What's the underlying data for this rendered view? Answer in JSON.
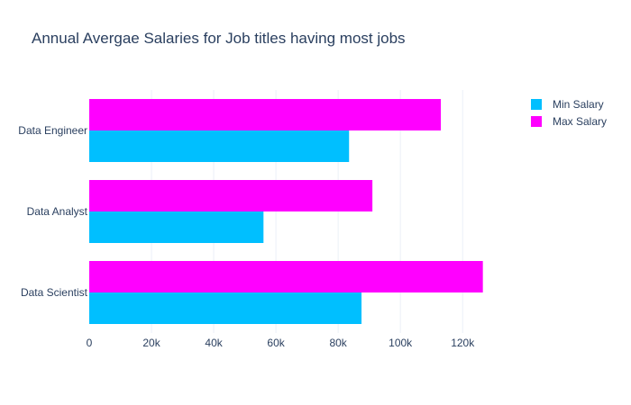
{
  "chart_data": {
    "type": "bar",
    "orientation": "horizontal",
    "title": "Annual Avergae Salaries for Job titles having most jobs",
    "categories": [
      "Data Scientist",
      "Data Analyst",
      "Data Engineer"
    ],
    "series": [
      {
        "name": "Min Salary",
        "color": "#00bfff",
        "values": [
          87500,
          56000,
          83500
        ]
      },
      {
        "name": "Max Salary",
        "color": "#ff00ff",
        "values": [
          126500,
          91000,
          113000
        ]
      }
    ],
    "xlim": [
      0,
      135000
    ],
    "xticks": [
      0,
      20000,
      40000,
      60000,
      80000,
      100000,
      120000
    ],
    "xtick_labels": [
      "0",
      "20k",
      "40k",
      "60k",
      "80k",
      "100k",
      "120k"
    ],
    "grid": true,
    "legend_position": "top-right"
  }
}
